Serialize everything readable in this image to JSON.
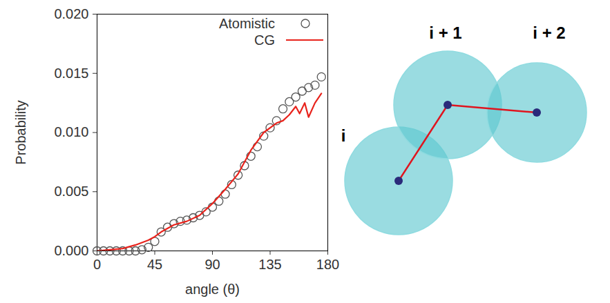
{
  "chart_data": {
    "type": "line",
    "x_label": "angle (θ)",
    "y_label": "Probability",
    "xlim": [
      0,
      180
    ],
    "xticks": [
      0,
      45,
      90,
      135,
      180
    ],
    "ylim": [
      0,
      0.02
    ],
    "yticks": [
      {
        "value": 0,
        "label": "0.000"
      },
      {
        "value": 0.005,
        "label": "0.005"
      },
      {
        "value": 0.01,
        "label": "0.010"
      },
      {
        "value": 0.015,
        "label": "0.015"
      },
      {
        "value": 0.02,
        "label": "0.020"
      }
    ],
    "grid": false,
    "legend": "top-right",
    "series": [
      {
        "name": "Atomistic",
        "type": "scatter",
        "marker": "circle",
        "color": "#555555",
        "x": [
          0,
          5,
          10,
          15,
          20,
          25,
          30,
          35,
          40,
          45,
          50,
          55,
          60,
          65,
          70,
          75,
          80,
          85,
          90,
          95,
          100,
          105,
          110,
          115,
          120,
          125,
          130,
          135,
          140,
          145,
          150,
          155,
          160,
          165,
          170,
          175
        ],
        "values": [
          0,
          0,
          0,
          0,
          0,
          0,
          0,
          0.0001,
          0.0003,
          0.0008,
          0.0016,
          0.002,
          0.0023,
          0.0025,
          0.0026,
          0.0028,
          0.003,
          0.0033,
          0.0037,
          0.0042,
          0.0048,
          0.0056,
          0.0064,
          0.0072,
          0.008,
          0.0088,
          0.0097,
          0.0104,
          0.011,
          0.012,
          0.0126,
          0.013,
          0.0135,
          0.0138,
          0.014,
          0.0147
        ]
      },
      {
        "name": "CG",
        "type": "line",
        "line_style": "solid",
        "color": "#e8231c",
        "x": [
          0,
          10,
          20,
          30,
          40,
          45,
          50,
          60,
          70,
          80,
          90,
          100,
          110,
          120,
          130,
          140,
          145,
          150,
          155,
          158,
          162,
          165,
          170,
          175
        ],
        "values": [
          0,
          0.0001,
          0.0002,
          0.0005,
          0.0009,
          0.0012,
          0.0016,
          0.0022,
          0.0025,
          0.003,
          0.004,
          0.0052,
          0.0065,
          0.0085,
          0.01,
          0.0108,
          0.011,
          0.0115,
          0.0122,
          0.0116,
          0.0125,
          0.0113,
          0.0125,
          0.0133
        ]
      }
    ]
  },
  "diagram": {
    "nodes": [
      {
        "label": "i"
      },
      {
        "label": "i + 1"
      },
      {
        "label": "i + 2"
      }
    ]
  }
}
